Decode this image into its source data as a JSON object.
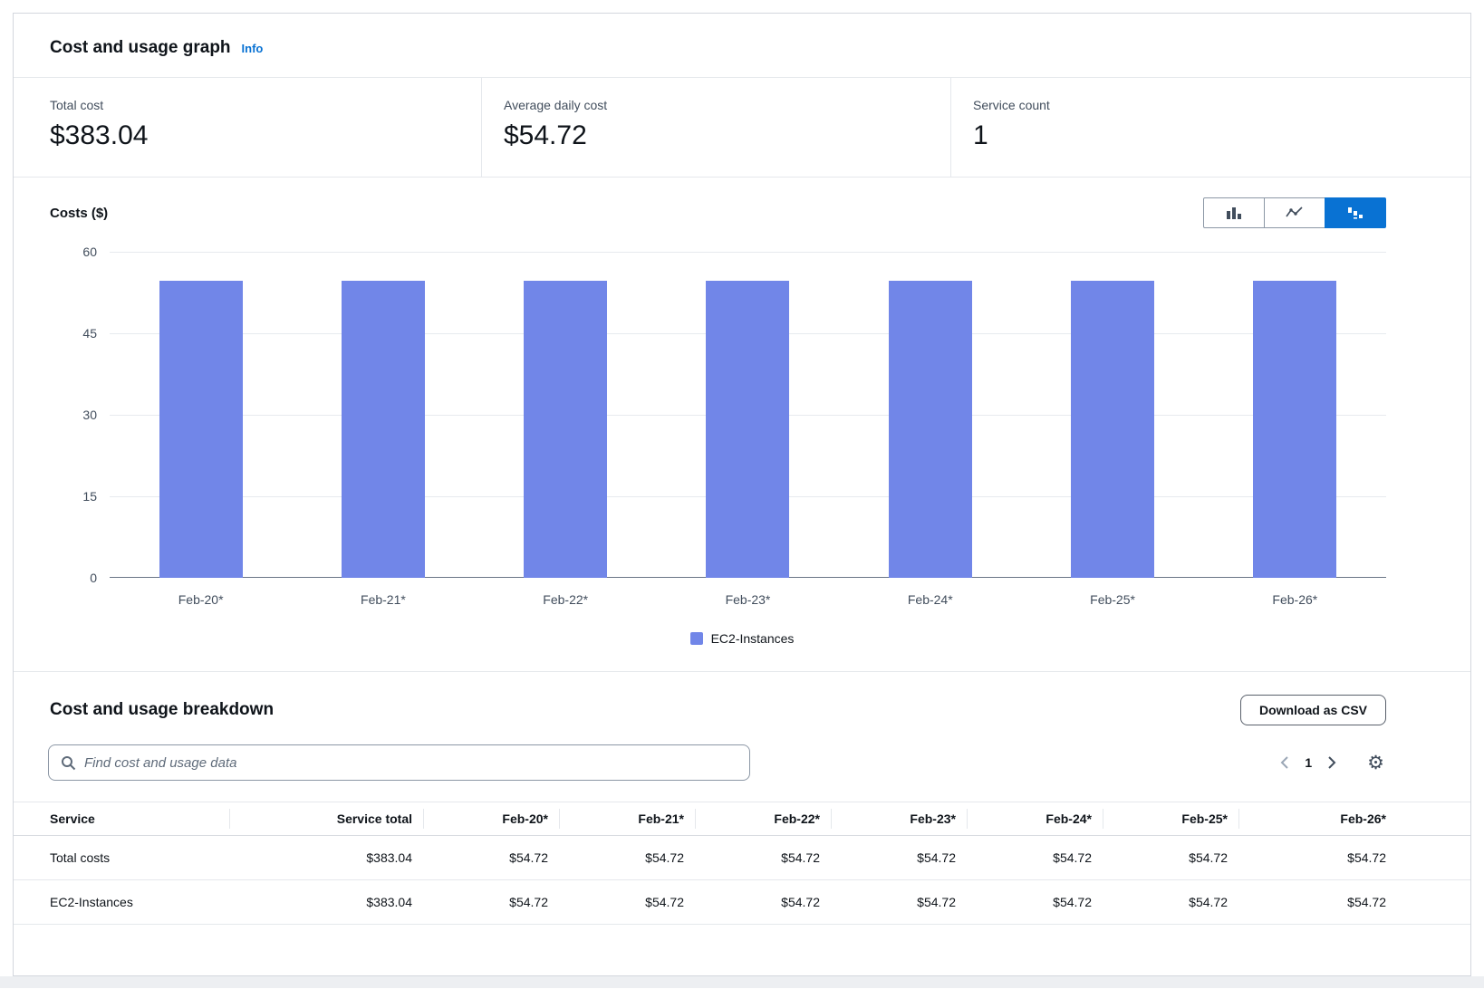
{
  "header": {
    "title": "Cost and usage graph",
    "info_link": "Info"
  },
  "stats": [
    {
      "label": "Total cost",
      "value": "$383.04"
    },
    {
      "label": "Average daily cost",
      "value": "$54.72"
    },
    {
      "label": "Service count",
      "value": "1"
    }
  ],
  "chart_data": {
    "type": "bar",
    "title": "Costs ($)",
    "ylabel": "Costs ($)",
    "xlabel": "",
    "categories": [
      "Feb-20*",
      "Feb-21*",
      "Feb-22*",
      "Feb-23*",
      "Feb-24*",
      "Feb-25*",
      "Feb-26*"
    ],
    "series": [
      {
        "name": "EC2-Instances",
        "values": [
          54.72,
          54.72,
          54.72,
          54.72,
          54.72,
          54.72,
          54.72
        ]
      }
    ],
    "values": [
      54.72,
      54.72,
      54.72,
      54.72,
      54.72,
      54.72,
      54.72
    ],
    "ylim": [
      0,
      60
    ],
    "yticks": [
      0,
      15,
      30,
      45,
      60
    ],
    "grid": true,
    "legend": [
      "EC2-Instances"
    ],
    "legend_position": "bottom"
  },
  "chart_controls": {
    "types": [
      "bar-chart",
      "line-chart",
      "stacked-bar-chart"
    ],
    "selected": "stacked-bar-chart"
  },
  "breakdown": {
    "title": "Cost and usage breakdown",
    "download_button": "Download as CSV",
    "search_placeholder": "Find cost and usage data",
    "pagination": {
      "current_page": "1"
    },
    "table": {
      "columns": [
        "Service",
        "Service total",
        "Feb-20*",
        "Feb-21*",
        "Feb-22*",
        "Feb-23*",
        "Feb-24*",
        "Feb-25*",
        "Feb-26*"
      ],
      "rows": [
        {
          "cells": [
            "Total costs",
            "$383.04",
            "$54.72",
            "$54.72",
            "$54.72",
            "$54.72",
            "$54.72",
            "$54.72",
            "$54.72"
          ]
        },
        {
          "cells": [
            "EC2-Instances",
            "$383.04",
            "$54.72",
            "$54.72",
            "$54.72",
            "$54.72",
            "$54.72",
            "$54.72",
            "$54.72"
          ]
        }
      ]
    }
  },
  "icons": {
    "gear": "⚙",
    "search": "magnifier",
    "prev": "chevron-left",
    "next": "chevron-right"
  },
  "colors": {
    "accent": "#0972d3",
    "bar": "#7186e8",
    "link": "#0972d3"
  }
}
